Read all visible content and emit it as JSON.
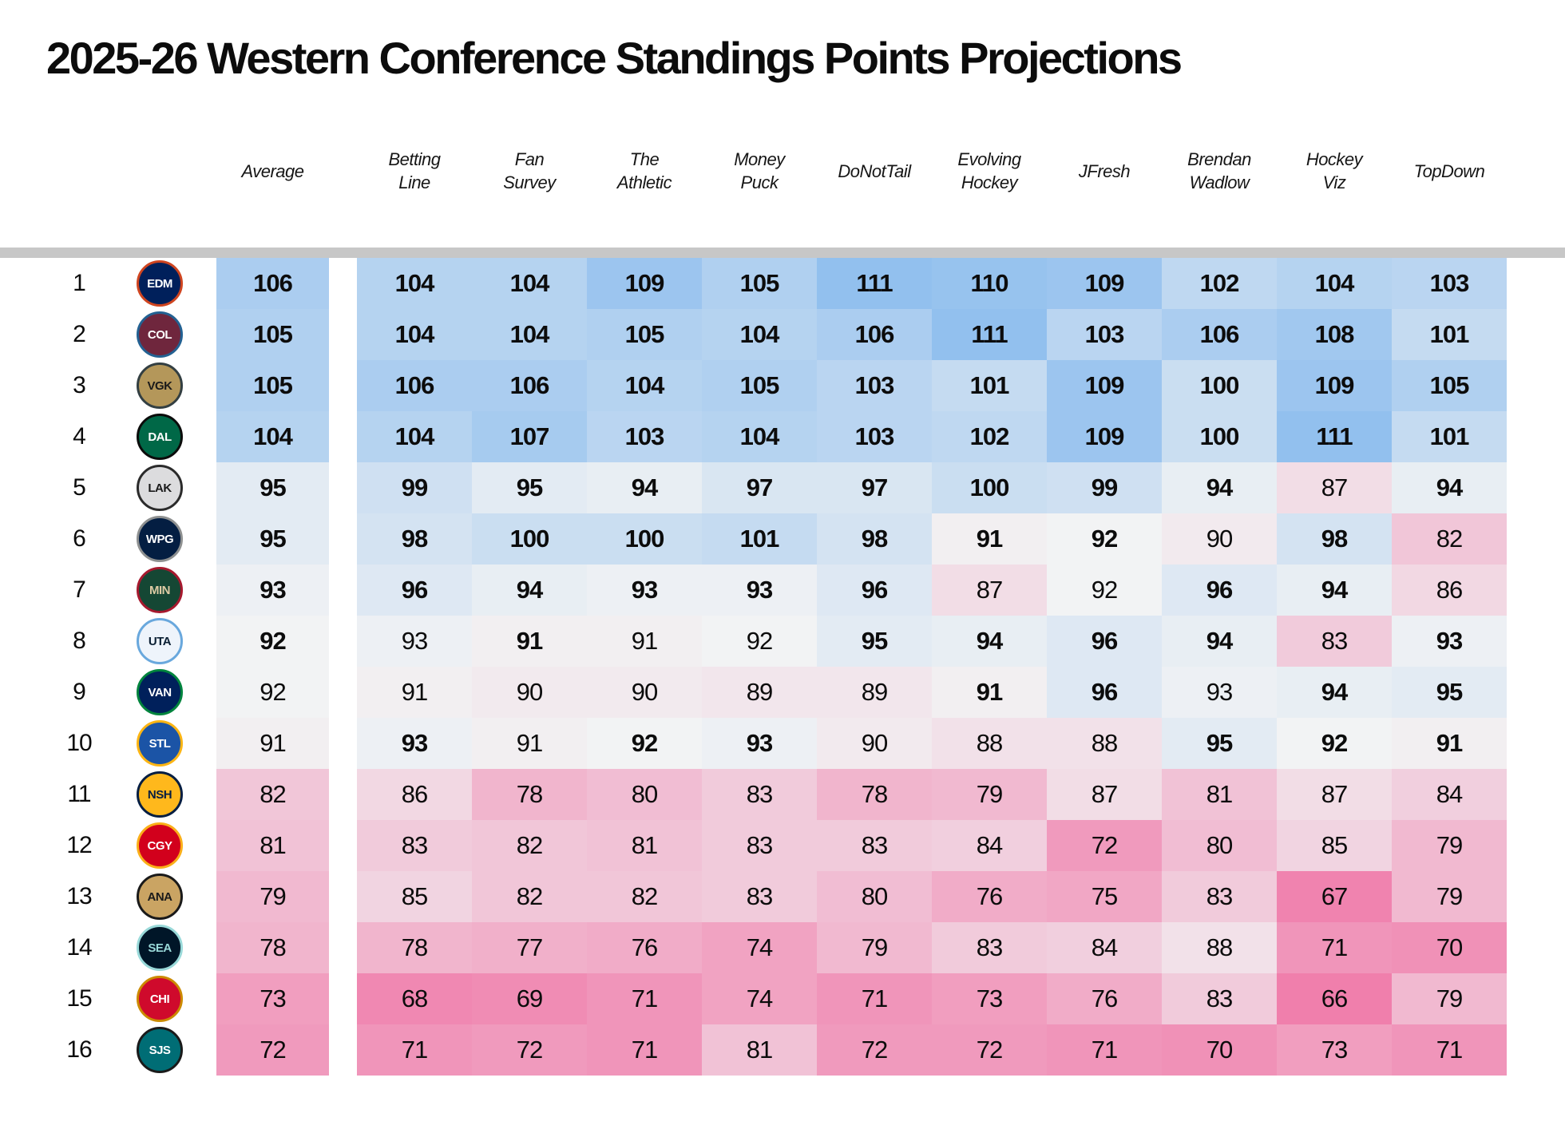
{
  "chart_data": {
    "type": "heatmap",
    "title": "2025-26 Western Conference Standings Points Projections",
    "columns": [
      "Average",
      "Betting\nLine",
      "Fan\nSurvey",
      "The\nAthletic",
      "Money\nPuck",
      "DoNotTail",
      "Evolving\nHockey",
      "JFresh",
      "Brendan\nWadlow",
      "Hockey\nViz",
      "TopDown"
    ],
    "value_order_note": "values[0]=Average, then one value per source column; bold[] marks heavy-weight numbers",
    "color_scale": {
      "low": {
        "value": 66,
        "color": "#f07fac"
      },
      "mid": {
        "value": 92,
        "color": "#f2f3f4"
      },
      "high": {
        "value": 111,
        "color": "#92c0ee"
      }
    },
    "divider_color": "#c7c7c7",
    "rows": [
      {
        "rank": 1,
        "team": "Edmonton Oilers",
        "abbr": "EDM",
        "logo": {
          "bg": "#00205b",
          "ring": "#cf4520",
          "text": "#ffffff"
        },
        "values": [
          106,
          104,
          104,
          109,
          105,
          111,
          110,
          109,
          102,
          104,
          103
        ],
        "bold": [
          1,
          1,
          1,
          1,
          1,
          1,
          1,
          1,
          1,
          1,
          1
        ]
      },
      {
        "rank": 2,
        "team": "Colorado Avalanche",
        "abbr": "COL",
        "logo": {
          "bg": "#6f263d",
          "ring": "#236192",
          "text": "#ffffff"
        },
        "values": [
          105,
          104,
          104,
          105,
          104,
          106,
          111,
          103,
          106,
          108,
          101
        ],
        "bold": [
          1,
          1,
          1,
          1,
          1,
          1,
          1,
          1,
          1,
          1,
          1
        ]
      },
      {
        "rank": 3,
        "team": "Vegas Golden Knights",
        "abbr": "VGK",
        "logo": {
          "bg": "#b4975a",
          "ring": "#333f42",
          "text": "#1a1a1a"
        },
        "values": [
          105,
          106,
          106,
          104,
          105,
          103,
          101,
          109,
          100,
          109,
          105
        ],
        "bold": [
          1,
          1,
          1,
          1,
          1,
          1,
          1,
          1,
          1,
          1,
          1
        ]
      },
      {
        "rank": 4,
        "team": "Dallas Stars",
        "abbr": "DAL",
        "logo": {
          "bg": "#006847",
          "ring": "#0b0c0b",
          "text": "#ffffff"
        },
        "values": [
          104,
          104,
          107,
          103,
          104,
          103,
          102,
          109,
          100,
          111,
          101
        ],
        "bold": [
          1,
          1,
          1,
          1,
          1,
          1,
          1,
          1,
          1,
          1,
          1
        ]
      },
      {
        "rank": 5,
        "team": "Los Angeles Kings",
        "abbr": "LAK",
        "logo": {
          "bg": "#dcdcde",
          "ring": "#2b2b2b",
          "text": "#1a1a1a"
        },
        "values": [
          95,
          99,
          95,
          94,
          97,
          97,
          100,
          99,
          94,
          87,
          94
        ],
        "bold": [
          1,
          1,
          1,
          1,
          1,
          1,
          1,
          1,
          1,
          0,
          1
        ]
      },
      {
        "rank": 6,
        "team": "Winnipeg Jets",
        "abbr": "WPG",
        "logo": {
          "bg": "#041e42",
          "ring": "#8e9090",
          "text": "#ffffff"
        },
        "values": [
          95,
          98,
          100,
          100,
          101,
          98,
          91,
          92,
          90,
          98,
          82
        ],
        "bold": [
          1,
          1,
          1,
          1,
          1,
          1,
          1,
          1,
          0,
          1,
          0
        ]
      },
      {
        "rank": 7,
        "team": "Minnesota Wild",
        "abbr": "MIN",
        "logo": {
          "bg": "#154734",
          "ring": "#a6192e",
          "text": "#ddcba4"
        },
        "values": [
          93,
          96,
          94,
          93,
          93,
          96,
          87,
          92,
          96,
          94,
          86
        ],
        "bold": [
          1,
          1,
          1,
          1,
          1,
          1,
          0,
          0,
          1,
          1,
          0
        ]
      },
      {
        "rank": 8,
        "team": "Utah Mammoth",
        "abbr": "UTA",
        "logo": {
          "bg": "#eef4fb",
          "ring": "#69a8dd",
          "text": "#0a1f33"
        },
        "values": [
          92,
          93,
          91,
          91,
          92,
          95,
          94,
          96,
          94,
          83,
          93
        ],
        "bold": [
          1,
          0,
          1,
          0,
          0,
          1,
          1,
          1,
          1,
          0,
          1
        ]
      },
      {
        "rank": 9,
        "team": "Vancouver Canucks",
        "abbr": "VAN",
        "logo": {
          "bg": "#00205b",
          "ring": "#00843d",
          "text": "#ffffff"
        },
        "values": [
          92,
          91,
          90,
          90,
          89,
          89,
          91,
          96,
          93,
          94,
          95
        ],
        "bold": [
          0,
          0,
          0,
          0,
          0,
          0,
          1,
          1,
          0,
          1,
          1
        ]
      },
      {
        "rank": 10,
        "team": "St. Louis Blues",
        "abbr": "STL",
        "logo": {
          "bg": "#1b54a6",
          "ring": "#fcb514",
          "text": "#ffffff"
        },
        "values": [
          91,
          93,
          91,
          92,
          93,
          90,
          88,
          88,
          95,
          92,
          91
        ],
        "bold": [
          0,
          1,
          0,
          1,
          1,
          0,
          0,
          0,
          1,
          1,
          1
        ]
      },
      {
        "rank": 11,
        "team": "Nashville Predators",
        "abbr": "NSH",
        "logo": {
          "bg": "#ffb81c",
          "ring": "#041e42",
          "text": "#041e42"
        },
        "values": [
          82,
          86,
          78,
          80,
          83,
          78,
          79,
          87,
          81,
          87,
          84
        ],
        "bold": [
          0,
          0,
          0,
          0,
          0,
          0,
          0,
          0,
          0,
          0,
          0
        ]
      },
      {
        "rank": 12,
        "team": "Calgary Flames",
        "abbr": "CGY",
        "logo": {
          "bg": "#d2001c",
          "ring": "#faaf19",
          "text": "#ffffff"
        },
        "values": [
          81,
          83,
          82,
          81,
          83,
          83,
          84,
          72,
          80,
          85,
          79
        ],
        "bold": [
          0,
          0,
          0,
          0,
          0,
          0,
          0,
          0,
          0,
          0,
          0
        ]
      },
      {
        "rank": 13,
        "team": "Anaheim Ducks",
        "abbr": "ANA",
        "logo": {
          "bg": "#caa463",
          "ring": "#1a1a1a",
          "text": "#1a1a1a"
        },
        "values": [
          79,
          85,
          82,
          82,
          83,
          80,
          76,
          75,
          83,
          67,
          79
        ],
        "bold": [
          0,
          0,
          0,
          0,
          0,
          0,
          0,
          0,
          0,
          0,
          0
        ]
      },
      {
        "rank": 14,
        "team": "Seattle Kraken",
        "abbr": "SEA",
        "logo": {
          "bg": "#001628",
          "ring": "#99d9d9",
          "text": "#99d9d9"
        },
        "values": [
          78,
          78,
          77,
          76,
          74,
          79,
          83,
          84,
          88,
          71,
          70
        ],
        "bold": [
          0,
          0,
          0,
          0,
          0,
          0,
          0,
          0,
          0,
          0,
          0
        ]
      },
      {
        "rank": 15,
        "team": "Chicago Blackhawks",
        "abbr": "CHI",
        "logo": {
          "bg": "#cf0a2c",
          "ring": "#cc8a00",
          "text": "#ffffff"
        },
        "values": [
          73,
          68,
          69,
          71,
          74,
          71,
          73,
          76,
          83,
          66,
          79
        ],
        "bold": [
          0,
          0,
          0,
          0,
          0,
          0,
          0,
          0,
          0,
          0,
          0
        ]
      },
      {
        "rank": 16,
        "team": "San Jose Sharks",
        "abbr": "SJS",
        "logo": {
          "bg": "#006d75",
          "ring": "#1a1a1a",
          "text": "#ffffff"
        },
        "values": [
          72,
          71,
          72,
          71,
          81,
          72,
          72,
          71,
          70,
          73,
          71
        ],
        "bold": [
          0,
          0,
          0,
          0,
          0,
          0,
          0,
          0,
          0,
          0,
          0
        ]
      }
    ]
  }
}
